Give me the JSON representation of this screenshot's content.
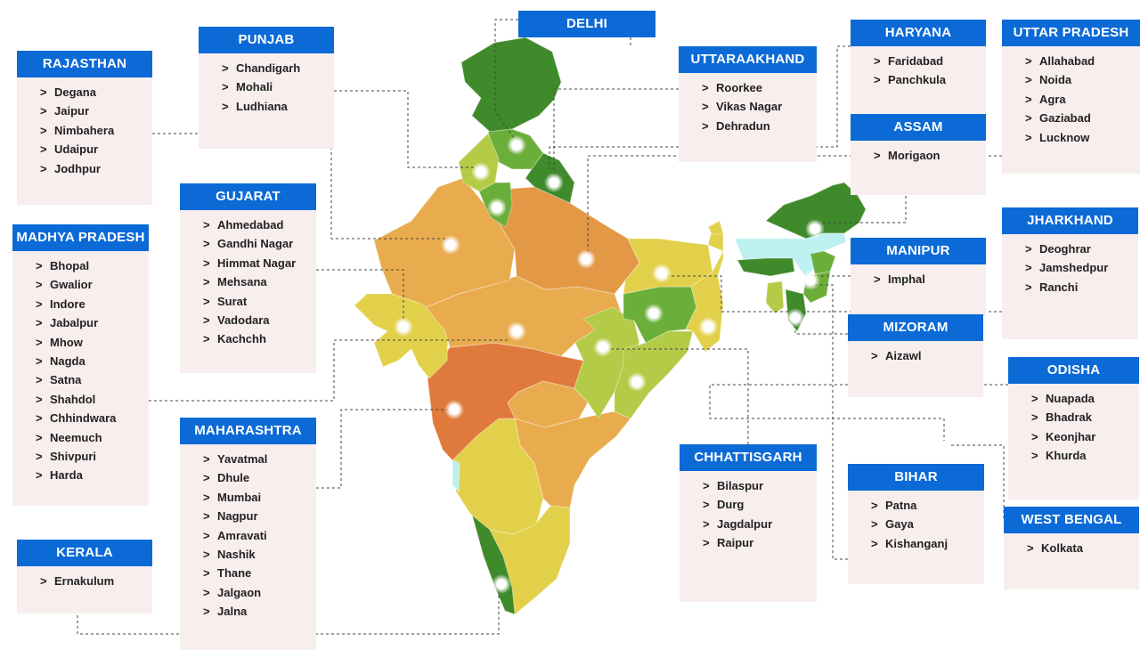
{
  "map": {
    "colors": {
      "deep_green": "#3f8a2a",
      "mid_green": "#6cae3a",
      "lime": "#b3cb46",
      "yellow": "#e3d04a",
      "light_orange": "#e8ac4e",
      "orange": "#e29845",
      "dark_orange": "#df7a3c",
      "cyan": "#bdf0f0",
      "header_blue": "#0b6ad6",
      "card_bg": "#f8eeee"
    },
    "regions": [
      {
        "name": "Jammu & Kashmir",
        "color": "#3f8a2a"
      },
      {
        "name": "Himachal Pradesh",
        "color": "#6cae3a"
      },
      {
        "name": "Punjab",
        "color": "#b3cb46"
      },
      {
        "name": "Haryana",
        "color": "#6cae3a"
      },
      {
        "name": "Uttarakhand",
        "color": "#3f8a2a"
      },
      {
        "name": "Rajasthan",
        "color": "#e8ac4e"
      },
      {
        "name": "Uttar Pradesh",
        "color": "#e29845"
      },
      {
        "name": "Bihar",
        "color": "#e3d04a"
      },
      {
        "name": "Gujarat",
        "color": "#e3d04a"
      },
      {
        "name": "Madhya Pradesh",
        "color": "#e8ac4e"
      },
      {
        "name": "Jharkhand",
        "color": "#6cae3a"
      },
      {
        "name": "West Bengal",
        "color": "#e3d04a"
      },
      {
        "name": "Chhattisgarh",
        "color": "#b3cb46"
      },
      {
        "name": "Odisha",
        "color": "#b3cb46"
      },
      {
        "name": "Maharashtra",
        "color": "#df7a3c"
      },
      {
        "name": "Telangana",
        "color": "#e8ac4e"
      },
      {
        "name": "Andhra Pradesh",
        "color": "#e8ac4e"
      },
      {
        "name": "Karnataka",
        "color": "#e3d04a"
      },
      {
        "name": "Goa",
        "color": "#bdf0f0"
      },
      {
        "name": "Kerala",
        "color": "#3f8a2a"
      },
      {
        "name": "Tamil Nadu",
        "color": "#e3d04a"
      },
      {
        "name": "Sikkim",
        "color": "#e3d04a"
      },
      {
        "name": "Arunachal Pradesh",
        "color": "#3f8a2a"
      },
      {
        "name": "Assam",
        "color": "#bdf0f0"
      },
      {
        "name": "Meghalaya",
        "color": "#3f8a2a"
      },
      {
        "name": "Nagaland",
        "color": "#6cae3a"
      },
      {
        "name": "Manipur",
        "color": "#6cae3a"
      },
      {
        "name": "Mizoram",
        "color": "#3f8a2a"
      },
      {
        "name": "Tripura",
        "color": "#b3cb46"
      }
    ]
  },
  "cards": [
    {
      "id": "rajasthan",
      "title": "RAJASTHAN",
      "cities": [
        "Degana",
        "Jaipur",
        "Nimbahera",
        "Udaipur",
        "Jodhpur"
      ]
    },
    {
      "id": "punjab",
      "title": "PUNJAB",
      "cities": [
        "Chandigarh",
        "Mohali",
        "Ludhiana"
      ]
    },
    {
      "id": "delhi",
      "title": "DELHI",
      "cities": []
    },
    {
      "id": "uttaraakhand",
      "title": "UTTARAAKHAND",
      "cities": [
        "Roorkee",
        "Vikas Nagar",
        "Dehradun"
      ]
    },
    {
      "id": "haryana",
      "title": "HARYANA",
      "cities": [
        "Faridabad",
        "Panchkula"
      ]
    },
    {
      "id": "uttar-pradesh",
      "title": "UTTAR PRADESH",
      "cities": [
        "Allahabad",
        "Noida",
        "Agra",
        "Gaziabad",
        "Lucknow"
      ]
    },
    {
      "id": "assam",
      "title": "ASSAM",
      "cities": [
        "Morigaon"
      ]
    },
    {
      "id": "gujarat",
      "title": "GUJARAT",
      "cities": [
        "Ahmedabad",
        "Gandhi Nagar",
        "Himmat Nagar",
        "Mehsana",
        "Surat",
        "Vadodara",
        "Kachchh"
      ]
    },
    {
      "id": "madhya-pradesh",
      "title": "MADHYA PRADESH",
      "cities": [
        "Bhopal",
        "Gwalior",
        "Indore",
        "Jabalpur",
        "Mhow",
        "Nagda",
        "Satna",
        "Shahdol",
        "Chhindwara",
        "Neemuch",
        "Shivpuri",
        "Harda"
      ]
    },
    {
      "id": "jharkhand",
      "title": "JHARKHAND",
      "cities": [
        "Deoghrar",
        "Jamshedpur",
        "Ranchi"
      ]
    },
    {
      "id": "manipur",
      "title": "MANIPUR",
      "cities": [
        "Imphal"
      ]
    },
    {
      "id": "mizoram",
      "title": "MIZORAM",
      "cities": [
        "Aizawl"
      ]
    },
    {
      "id": "odisha",
      "title": "ODISHA",
      "cities": [
        "Nuapada",
        "Bhadrak",
        "Keonjhar",
        "Khurda"
      ]
    },
    {
      "id": "maharashtra",
      "title": "MAHARASHTRA",
      "cities": [
        "Yavatmal",
        "Dhule",
        "Mumbai",
        "Nagpur",
        "Amravati",
        "Nashik",
        "Thane",
        "Jalgaon",
        "Jalna"
      ]
    },
    {
      "id": "chhattisgarh",
      "title": "CHHATTISGARH",
      "cities": [
        "Bilaspur",
        "Durg",
        "Jagdalpur",
        "Raipur"
      ]
    },
    {
      "id": "bihar",
      "title": "BIHAR",
      "cities": [
        "Patna",
        "Gaya",
        "Kishanganj"
      ]
    },
    {
      "id": "west-bengal",
      "title": "WEST BENGAL",
      "cities": [
        "Kolkata"
      ]
    },
    {
      "id": "kerala",
      "title": "KERALA",
      "cities": [
        "Ernakulum"
      ]
    }
  ]
}
